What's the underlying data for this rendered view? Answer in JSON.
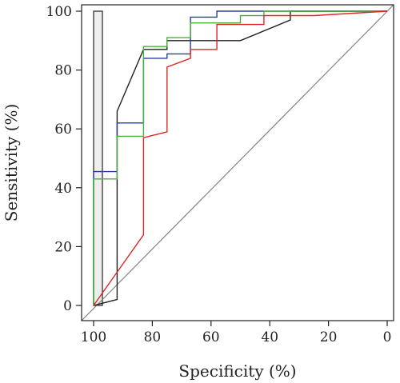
{
  "chart_data": {
    "type": "line",
    "subtype": "roc",
    "title": "",
    "xlabel": "Specificity (%)",
    "ylabel": "Sensitivity (%)",
    "x_reversed": true,
    "xlim": [
      100,
      0
    ],
    "ylim": [
      0,
      100
    ],
    "x_ticks": [
      100,
      80,
      60,
      40,
      20,
      0
    ],
    "y_ticks": [
      0,
      20,
      40,
      60,
      80,
      100
    ],
    "grid": false,
    "legend": "none",
    "diagonal_reference": true,
    "diagonal_color": "#808080",
    "annotation_box": {
      "x_from": 97,
      "x_to": 100,
      "y_from": 0,
      "y_to": 100,
      "fill": "#eeeeee",
      "stroke": "#222222"
    },
    "series": [
      {
        "color": "#222222",
        "x": [
          100,
          92,
          92,
          83,
          75,
          75,
          67,
          50,
          33,
          33,
          0
        ],
        "y": [
          0,
          2,
          66,
          87,
          87,
          90,
          90,
          90,
          97,
          100,
          100
        ]
      },
      {
        "color": "#2a3d99",
        "x": [
          100,
          100,
          92,
          92,
          83,
          83,
          75,
          75,
          67,
          67,
          58,
          58,
          0
        ],
        "y": [
          0,
          45.5,
          45.5,
          62,
          62,
          84,
          84,
          85.5,
          85.5,
          98,
          98,
          100,
          100
        ]
      },
      {
        "color": "#4caf3c",
        "x": [
          100,
          100,
          92,
          92,
          83,
          83,
          75,
          75,
          67,
          67,
          50,
          50,
          42,
          42,
          0
        ],
        "y": [
          0,
          43,
          43,
          57.5,
          57.5,
          88,
          88,
          91,
          91,
          96,
          96,
          98.5,
          98.5,
          100,
          100
        ]
      },
      {
        "color": "#e02525",
        "x": [
          100,
          83,
          83,
          75,
          75,
          67,
          67,
          58,
          58,
          42,
          42,
          25,
          0
        ],
        "y": [
          0,
          24,
          57,
          59,
          81,
          84,
          87,
          87,
          95.5,
          95.5,
          98.5,
          98.5,
          100
        ]
      }
    ]
  }
}
